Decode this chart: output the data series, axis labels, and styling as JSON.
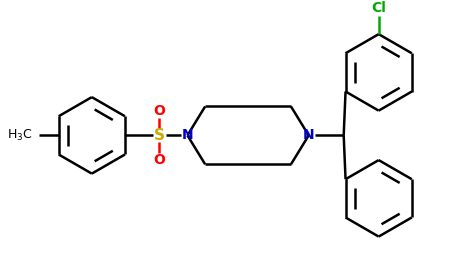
{
  "background_color": "#ffffff",
  "bond_color": "#000000",
  "nitrogen_color": "#0000cd",
  "sulfur_color": "#ccaa00",
  "oxygen_color": "#ff0000",
  "chlorine_color": "#00aa00",
  "line_width": 1.8,
  "figsize": [
    4.74,
    2.76
  ],
  "dpi": 100,
  "xlim": [
    0,
    10
  ],
  "ylim": [
    0,
    5.8
  ]
}
